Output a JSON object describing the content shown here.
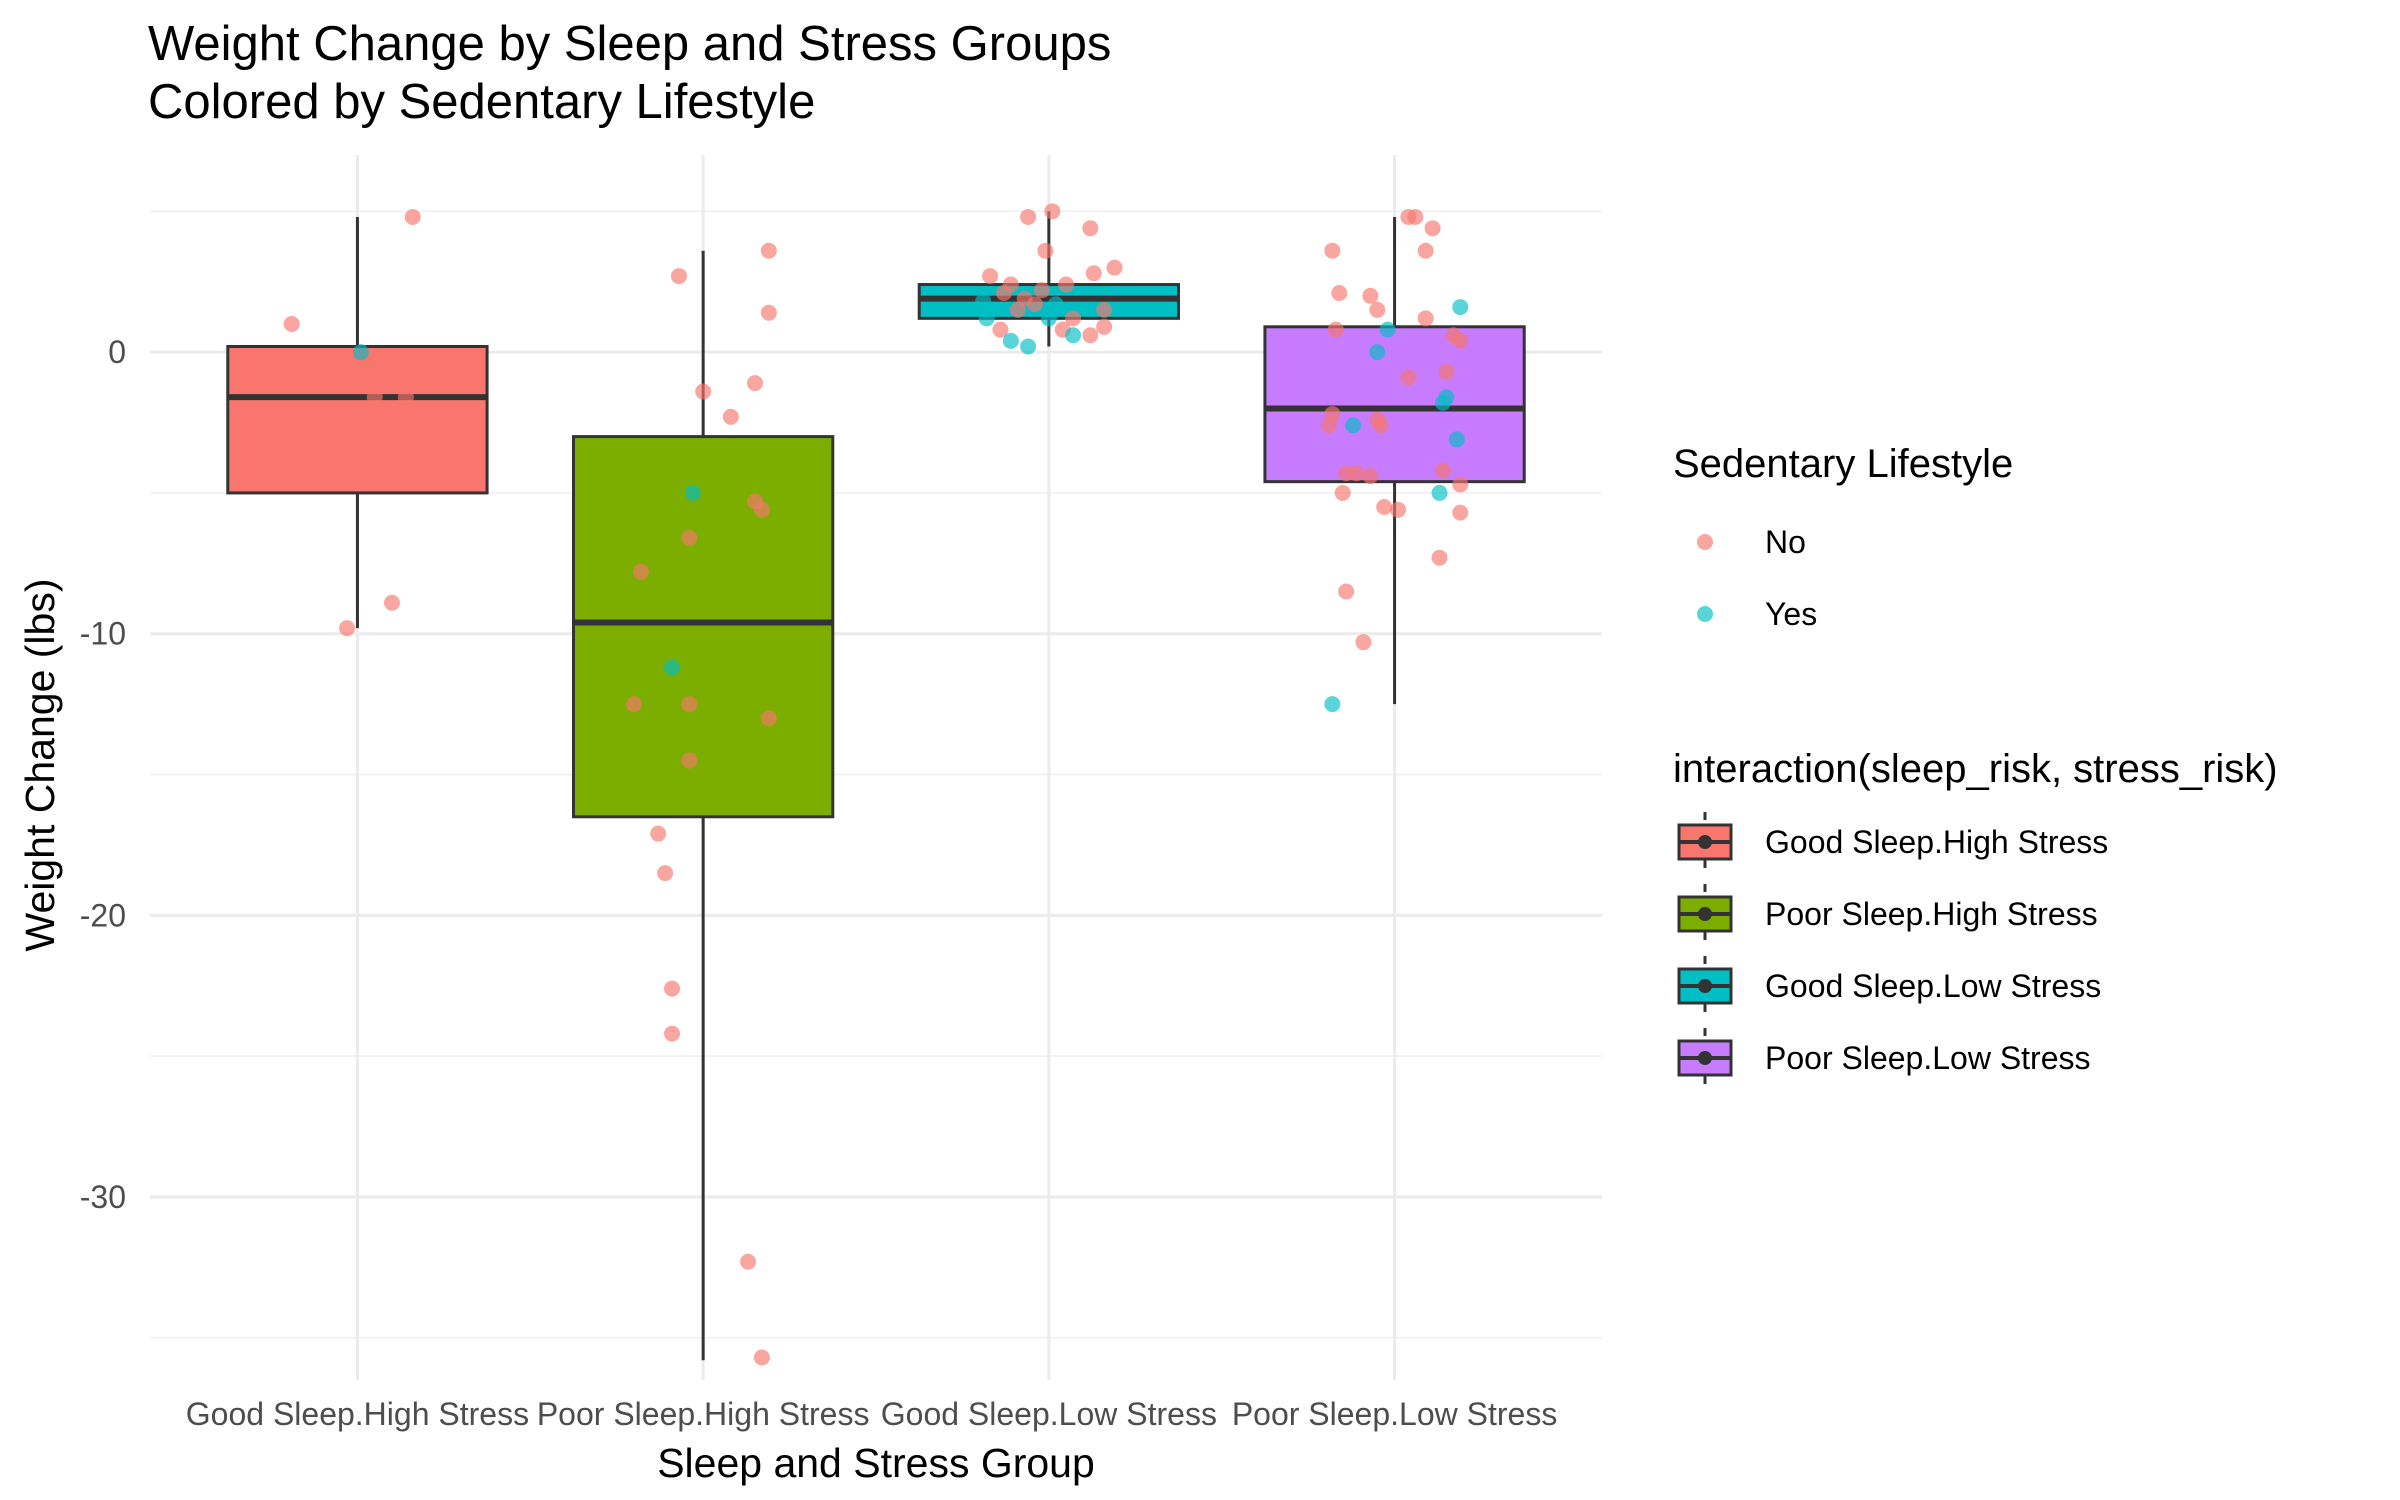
{
  "chart_data": {
    "type": "box",
    "title": "Weight Change by Sleep and Stress Groups",
    "subtitle": "Colored by Sedentary Lifestyle",
    "xlabel": "Sleep and Stress Group",
    "ylabel": "Weight Change (lbs)",
    "ylim": [
      -36.5,
      7
    ],
    "yticks": [
      0,
      -10,
      -20,
      -30
    ],
    "ytick_labels": [
      "0",
      "-10",
      "-20",
      "-30"
    ],
    "grid": true,
    "legend_position": "right",
    "categories": [
      "Good Sleep.High Stress",
      "Poor Sleep.High Stress",
      "Good Sleep.Low Stress",
      "Poor Sleep.Low Stress"
    ],
    "box_legend_title": "interaction(sleep_risk, stress_risk)",
    "boxes": [
      {
        "name": "Good Sleep.High Stress",
        "color": "#F8766D",
        "whisker_low": -9.8,
        "q1": -5.0,
        "median": -1.6,
        "q3": 0.2,
        "whisker_high": 4.8
      },
      {
        "name": "Poor Sleep.High Stress",
        "color": "#7CAE00",
        "whisker_low": -35.8,
        "q1": -16.5,
        "median": -9.6,
        "q3": -3.0,
        "whisker_high": 3.6
      },
      {
        "name": "Good Sleep.Low Stress",
        "color": "#00BFC4",
        "whisker_low": 0.2,
        "q1": 1.2,
        "median": 1.9,
        "q3": 2.4,
        "whisker_high": 5.0
      },
      {
        "name": "Poor Sleep.Low Stress",
        "color": "#C77CFF",
        "whisker_low": -12.5,
        "q1": -4.6,
        "median": -2.0,
        "q3": 0.9,
        "whisker_high": 4.8
      }
    ],
    "point_legend_title": "Sedentary Lifestyle",
    "point_series": [
      {
        "name": "No",
        "color": "#F8766D"
      },
      {
        "name": "Yes",
        "color": "#00BFC4"
      }
    ],
    "points": [
      {
        "group": 0,
        "x": -0.19,
        "y": 1.0,
        "sed": "No"
      },
      {
        "group": 0,
        "x": 0.16,
        "y": 4.8,
        "sed": "No"
      },
      {
        "group": 0,
        "x": 0.01,
        "y": 0.0,
        "sed": "Yes"
      },
      {
        "group": 0,
        "x": 0.05,
        "y": -1.6,
        "sed": "No"
      },
      {
        "group": 0,
        "x": 0.14,
        "y": -1.6,
        "sed": "No"
      },
      {
        "group": 0,
        "x": 0.1,
        "y": -8.9,
        "sed": "No"
      },
      {
        "group": 0,
        "x": -0.03,
        "y": -9.8,
        "sed": "No"
      },
      {
        "group": 1,
        "x": -0.07,
        "y": 2.7,
        "sed": "No"
      },
      {
        "group": 1,
        "x": 0.19,
        "y": 3.6,
        "sed": "No"
      },
      {
        "group": 1,
        "x": 0.19,
        "y": 1.4,
        "sed": "No"
      },
      {
        "group": 1,
        "x": 0.0,
        "y": -1.4,
        "sed": "No"
      },
      {
        "group": 1,
        "x": 0.15,
        "y": -1.1,
        "sed": "No"
      },
      {
        "group": 1,
        "x": 0.08,
        "y": -2.3,
        "sed": "No"
      },
      {
        "group": 1,
        "x": -0.03,
        "y": -5.0,
        "sed": "Yes"
      },
      {
        "group": 1,
        "x": 0.15,
        "y": -5.3,
        "sed": "No"
      },
      {
        "group": 1,
        "x": 0.17,
        "y": -5.6,
        "sed": "No"
      },
      {
        "group": 1,
        "x": -0.04,
        "y": -6.6,
        "sed": "No"
      },
      {
        "group": 1,
        "x": -0.18,
        "y": -7.8,
        "sed": "No"
      },
      {
        "group": 1,
        "x": -0.09,
        "y": -11.2,
        "sed": "Yes"
      },
      {
        "group": 1,
        "x": -0.2,
        "y": -12.5,
        "sed": "No"
      },
      {
        "group": 1,
        "x": -0.04,
        "y": -12.5,
        "sed": "No"
      },
      {
        "group": 1,
        "x": 0.19,
        "y": -13.0,
        "sed": "No"
      },
      {
        "group": 1,
        "x": -0.04,
        "y": -14.5,
        "sed": "No"
      },
      {
        "group": 1,
        "x": -0.13,
        "y": -17.1,
        "sed": "No"
      },
      {
        "group": 1,
        "x": -0.11,
        "y": -18.5,
        "sed": "No"
      },
      {
        "group": 1,
        "x": -0.09,
        "y": -22.6,
        "sed": "No"
      },
      {
        "group": 1,
        "x": -0.09,
        "y": -24.2,
        "sed": "No"
      },
      {
        "group": 1,
        "x": 0.13,
        "y": -32.3,
        "sed": "No"
      },
      {
        "group": 1,
        "x": 0.17,
        "y": -35.7,
        "sed": "No"
      },
      {
        "group": 2,
        "x": -0.06,
        "y": 4.8,
        "sed": "No"
      },
      {
        "group": 2,
        "x": 0.01,
        "y": 5.0,
        "sed": "No"
      },
      {
        "group": 2,
        "x": 0.12,
        "y": 4.4,
        "sed": "No"
      },
      {
        "group": 2,
        "x": -0.01,
        "y": 3.6,
        "sed": "No"
      },
      {
        "group": 2,
        "x": 0.19,
        "y": 3.0,
        "sed": "No"
      },
      {
        "group": 2,
        "x": -0.17,
        "y": 2.7,
        "sed": "No"
      },
      {
        "group": 2,
        "x": 0.13,
        "y": 2.8,
        "sed": "No"
      },
      {
        "group": 2,
        "x": -0.11,
        "y": 2.4,
        "sed": "No"
      },
      {
        "group": 2,
        "x": 0.05,
        "y": 2.4,
        "sed": "No"
      },
      {
        "group": 2,
        "x": -0.13,
        "y": 2.1,
        "sed": "No"
      },
      {
        "group": 2,
        "x": -0.07,
        "y": 1.9,
        "sed": "No"
      },
      {
        "group": 2,
        "x": -0.02,
        "y": 2.2,
        "sed": "No"
      },
      {
        "group": 2,
        "x": -0.19,
        "y": 1.8,
        "sed": "Yes"
      },
      {
        "group": 2,
        "x": -0.09,
        "y": 1.5,
        "sed": "No"
      },
      {
        "group": 2,
        "x": -0.04,
        "y": 1.7,
        "sed": "No"
      },
      {
        "group": 2,
        "x": 0.02,
        "y": 1.7,
        "sed": "Yes"
      },
      {
        "group": 2,
        "x": 0.16,
        "y": 1.5,
        "sed": "No"
      },
      {
        "group": 2,
        "x": -0.18,
        "y": 1.2,
        "sed": "Yes"
      },
      {
        "group": 2,
        "x": 0.0,
        "y": 1.2,
        "sed": "Yes"
      },
      {
        "group": 2,
        "x": 0.07,
        "y": 1.2,
        "sed": "No"
      },
      {
        "group": 2,
        "x": 0.16,
        "y": 0.9,
        "sed": "No"
      },
      {
        "group": 2,
        "x": -0.14,
        "y": 0.8,
        "sed": "No"
      },
      {
        "group": 2,
        "x": 0.04,
        "y": 0.8,
        "sed": "No"
      },
      {
        "group": 2,
        "x": 0.12,
        "y": 0.6,
        "sed": "No"
      },
      {
        "group": 2,
        "x": 0.07,
        "y": 0.6,
        "sed": "Yes"
      },
      {
        "group": 2,
        "x": -0.11,
        "y": 0.4,
        "sed": "Yes"
      },
      {
        "group": 2,
        "x": -0.06,
        "y": 0.2,
        "sed": "Yes"
      },
      {
        "group": 3,
        "x": 0.04,
        "y": 4.8,
        "sed": "No"
      },
      {
        "group": 3,
        "x": 0.06,
        "y": 4.8,
        "sed": "No"
      },
      {
        "group": 3,
        "x": 0.11,
        "y": 4.4,
        "sed": "No"
      },
      {
        "group": 3,
        "x": -0.18,
        "y": 3.6,
        "sed": "No"
      },
      {
        "group": 3,
        "x": 0.09,
        "y": 3.6,
        "sed": "No"
      },
      {
        "group": 3,
        "x": -0.16,
        "y": 2.1,
        "sed": "No"
      },
      {
        "group": 3,
        "x": -0.07,
        "y": 2.0,
        "sed": "No"
      },
      {
        "group": 3,
        "x": -0.05,
        "y": 1.5,
        "sed": "No"
      },
      {
        "group": 3,
        "x": 0.19,
        "y": 1.6,
        "sed": "Yes"
      },
      {
        "group": 3,
        "x": 0.09,
        "y": 1.2,
        "sed": "No"
      },
      {
        "group": 3,
        "x": -0.17,
        "y": 0.8,
        "sed": "No"
      },
      {
        "group": 3,
        "x": -0.02,
        "y": 0.8,
        "sed": "Yes"
      },
      {
        "group": 3,
        "x": 0.17,
        "y": 0.6,
        "sed": "No"
      },
      {
        "group": 3,
        "x": 0.19,
        "y": 0.4,
        "sed": "No"
      },
      {
        "group": 3,
        "x": -0.05,
        "y": 0.0,
        "sed": "Yes"
      },
      {
        "group": 3,
        "x": 0.15,
        "y": -0.7,
        "sed": "No"
      },
      {
        "group": 3,
        "x": 0.04,
        "y": -0.9,
        "sed": "No"
      },
      {
        "group": 3,
        "x": 0.15,
        "y": -1.6,
        "sed": "Yes"
      },
      {
        "group": 3,
        "x": 0.14,
        "y": -1.8,
        "sed": "Yes"
      },
      {
        "group": 3,
        "x": -0.18,
        "y": -2.2,
        "sed": "No"
      },
      {
        "group": 3,
        "x": -0.05,
        "y": -2.4,
        "sed": "No"
      },
      {
        "group": 3,
        "x": -0.04,
        "y": -2.6,
        "sed": "No"
      },
      {
        "group": 3,
        "x": -0.19,
        "y": -2.6,
        "sed": "No"
      },
      {
        "group": 3,
        "x": -0.12,
        "y": -2.6,
        "sed": "Yes"
      },
      {
        "group": 3,
        "x": 0.18,
        "y": -3.1,
        "sed": "Yes"
      },
      {
        "group": 3,
        "x": 0.14,
        "y": -4.2,
        "sed": "No"
      },
      {
        "group": 3,
        "x": -0.14,
        "y": -4.3,
        "sed": "No"
      },
      {
        "group": 3,
        "x": -0.11,
        "y": -4.3,
        "sed": "No"
      },
      {
        "group": 3,
        "x": -0.07,
        "y": -4.4,
        "sed": "No"
      },
      {
        "group": 3,
        "x": 0.19,
        "y": -4.7,
        "sed": "No"
      },
      {
        "group": 3,
        "x": -0.15,
        "y": -5.0,
        "sed": "No"
      },
      {
        "group": 3,
        "x": 0.13,
        "y": -5.0,
        "sed": "Yes"
      },
      {
        "group": 3,
        "x": -0.03,
        "y": -5.5,
        "sed": "No"
      },
      {
        "group": 3,
        "x": 0.01,
        "y": -5.6,
        "sed": "No"
      },
      {
        "group": 3,
        "x": 0.19,
        "y": -5.7,
        "sed": "No"
      },
      {
        "group": 3,
        "x": 0.13,
        "y": -7.3,
        "sed": "No"
      },
      {
        "group": 3,
        "x": -0.14,
        "y": -8.5,
        "sed": "No"
      },
      {
        "group": 3,
        "x": -0.09,
        "y": -10.3,
        "sed": "No"
      },
      {
        "group": 3,
        "x": -0.18,
        "y": -12.5,
        "sed": "Yes"
      }
    ]
  }
}
